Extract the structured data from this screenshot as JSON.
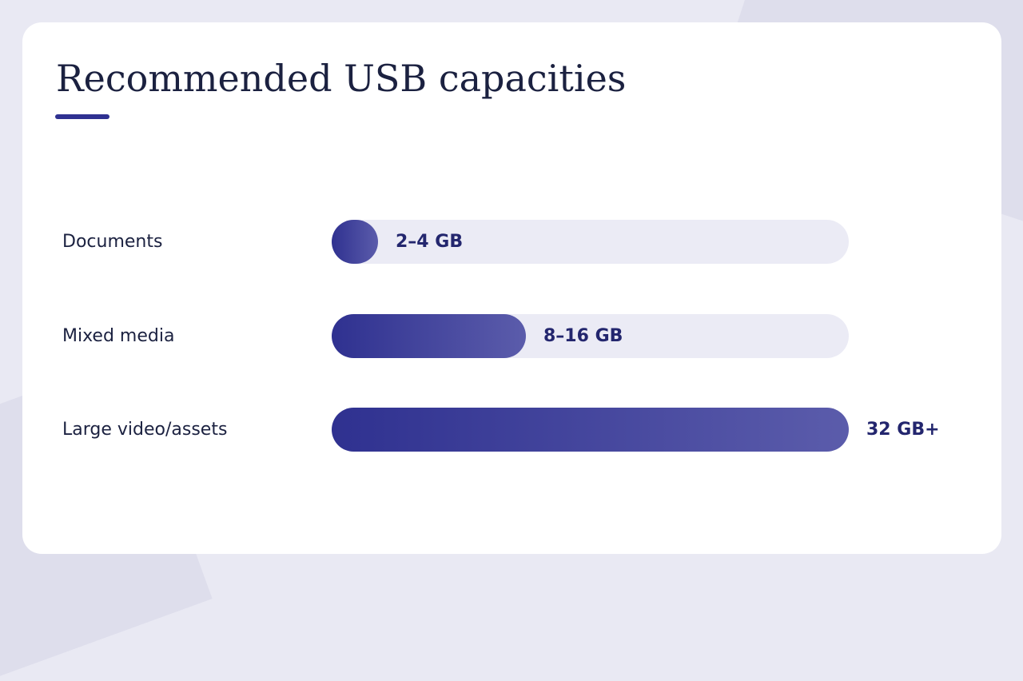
{
  "title": "Recommended USB capacities",
  "colors": {
    "accent": "#2f3191",
    "bar_start": "#2f3190",
    "bar_end": "#5b5cab",
    "track": "#ebebf5",
    "text": "#1b2140",
    "value_text": "#23266e",
    "background": "#e9e9f3",
    "card": "#ffffff"
  },
  "chart_data": {
    "type": "bar",
    "orientation": "horizontal",
    "title": "Recommended USB capacities",
    "xlabel": "",
    "ylabel": "",
    "grid": false,
    "legend": "none",
    "categories": [
      "Documents",
      "Mixed media",
      "Large video/assets"
    ],
    "values": [
      0.09,
      0.375,
      1.0
    ],
    "value_labels": [
      "2–4 GB",
      "8–16 GB",
      "32 GB+"
    ]
  }
}
